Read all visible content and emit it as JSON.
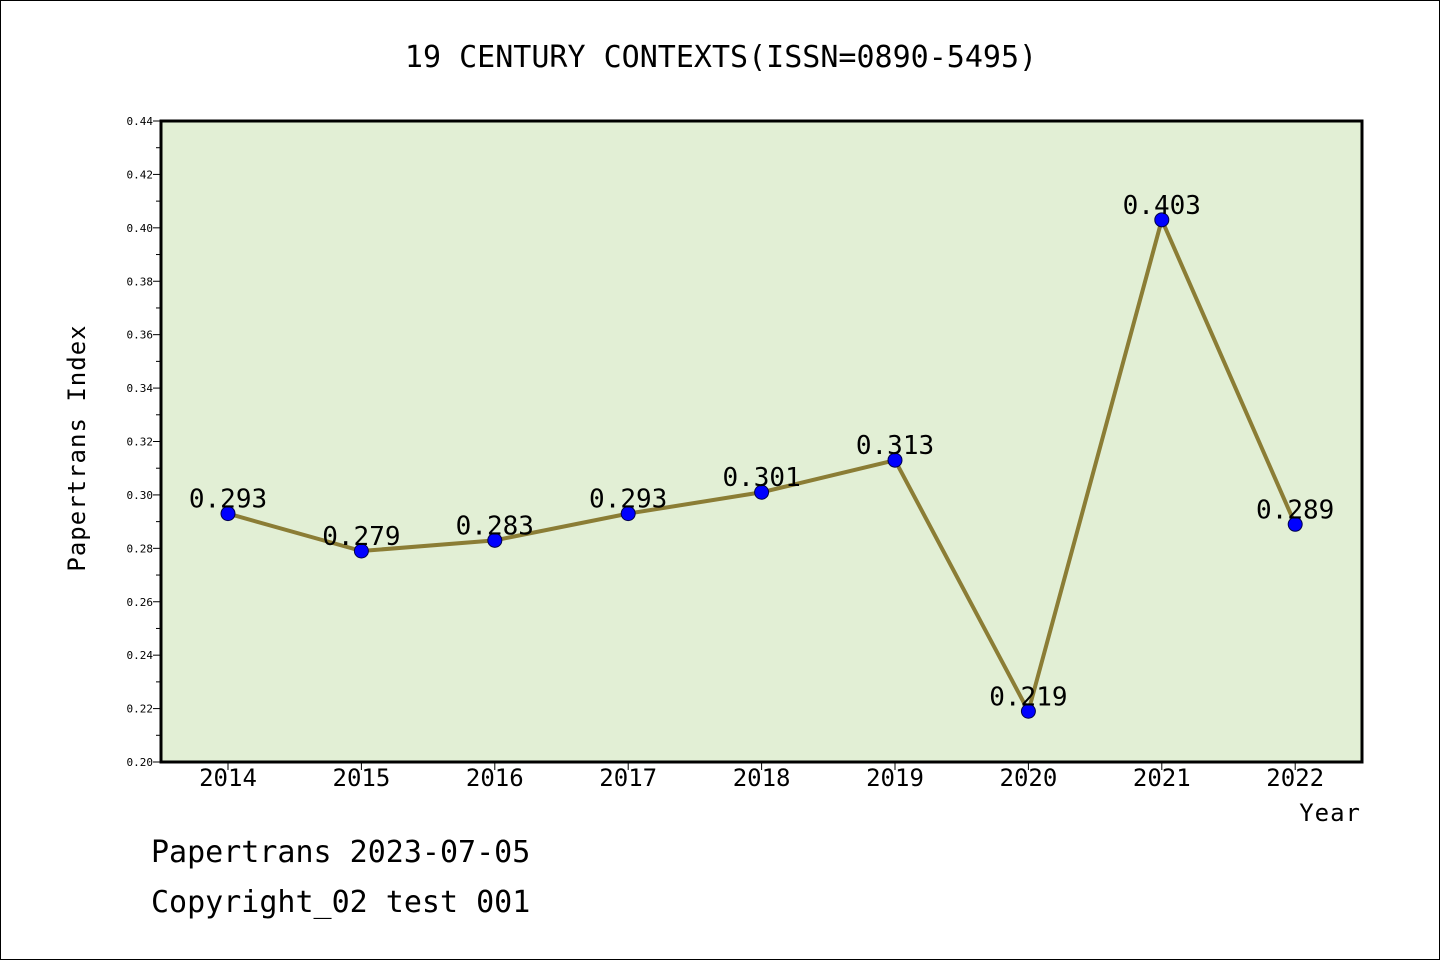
{
  "chart_data": {
    "type": "line",
    "title": "19 CENTURY CONTEXTS(ISSN=0890-5495)",
    "xlabel": "Year",
    "ylabel": "Papertrans Index",
    "categories": [
      "2014",
      "2015",
      "2016",
      "2017",
      "2018",
      "2019",
      "2020",
      "2021",
      "2022"
    ],
    "series": [
      {
        "name": "Papertrans Index",
        "values": [
          0.293,
          0.279,
          0.283,
          0.293,
          0.301,
          0.313,
          0.219,
          0.403,
          0.289
        ],
        "labels": [
          "0.293",
          "0.279",
          "0.283",
          "0.293",
          "0.301",
          "0.313",
          "0.219",
          "0.403",
          "0.289"
        ]
      }
    ],
    "ylim": [
      0.2,
      0.44
    ],
    "yticks": [
      "0.20",
      "0.22",
      "0.24",
      "0.26",
      "0.28",
      "0.30",
      "0.32",
      "0.34",
      "0.36",
      "0.38",
      "0.40",
      "0.42",
      "0.44"
    ],
    "grid": false,
    "legend": "none"
  },
  "colors": {
    "plot_background": "#e2efd5",
    "line": "#8b7d35",
    "marker": "#0000ff"
  },
  "footer": {
    "date_line": "Papertrans 2023-07-05",
    "copyright_line": "Copyright_02 test 001"
  }
}
